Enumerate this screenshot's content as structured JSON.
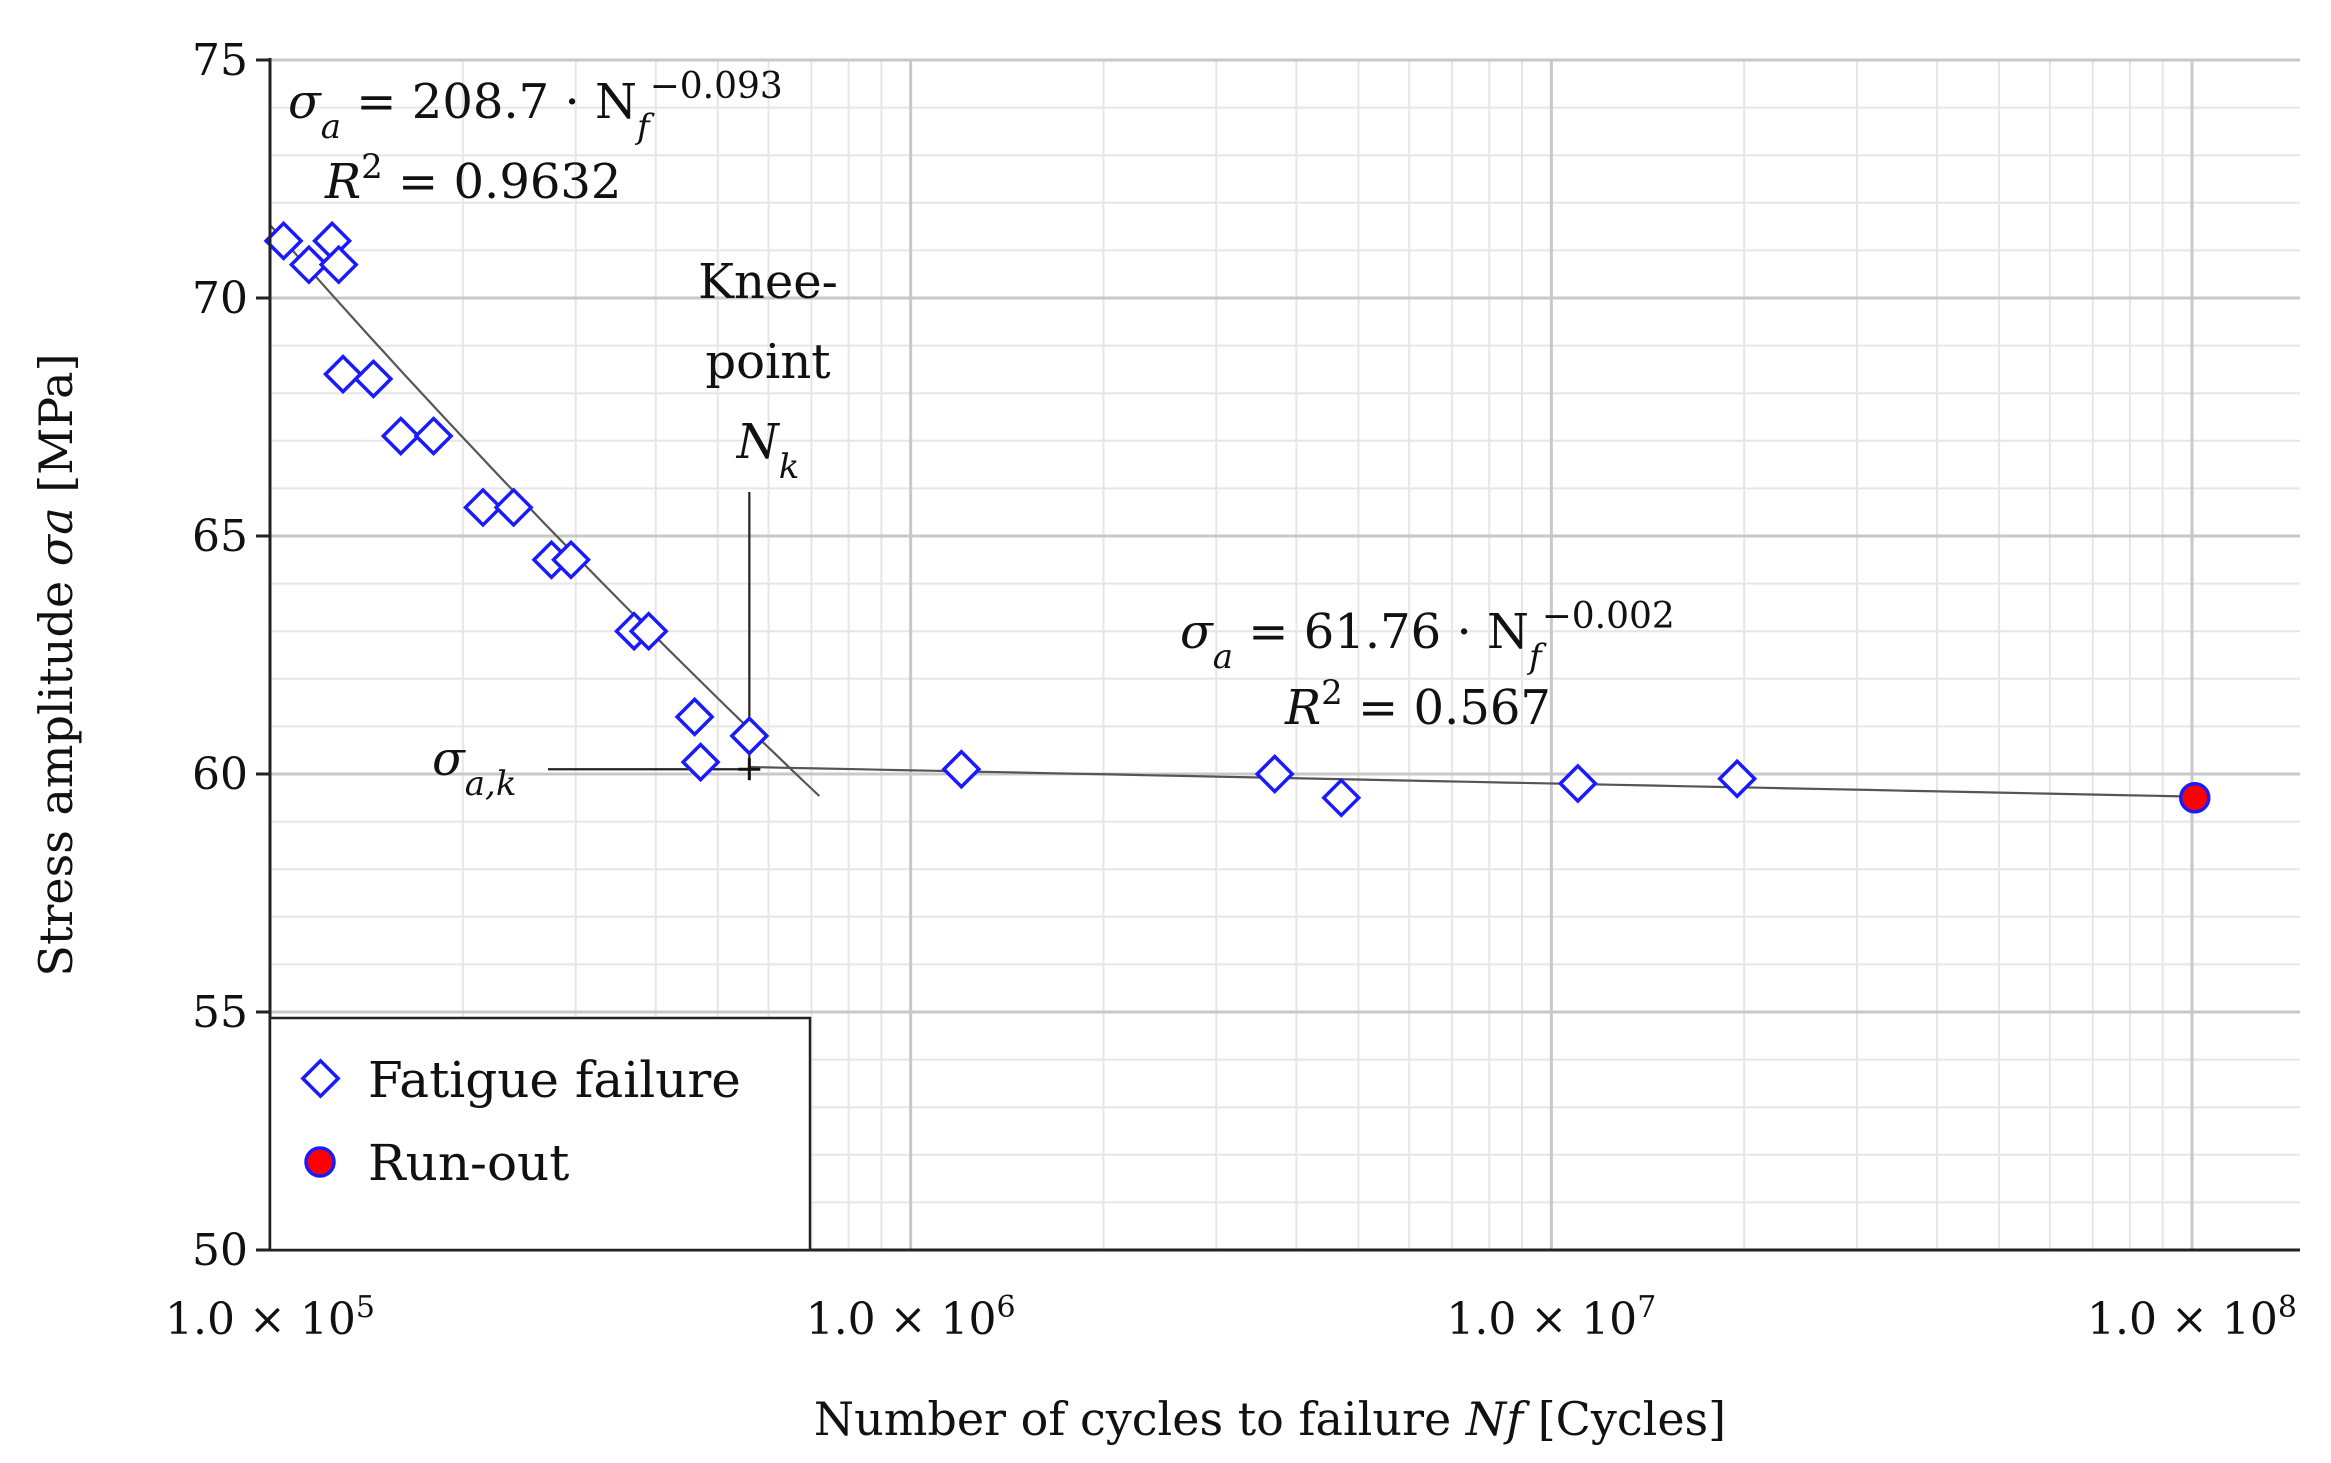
{
  "chart_data": {
    "type": "scatter",
    "xscale": "log",
    "xlim": [
      100000,
      150000000
    ],
    "ylim": [
      50,
      75
    ],
    "yticks": [
      50,
      55,
      60,
      65,
      70,
      75
    ],
    "ytick_labels": [
      "50",
      "55",
      "60",
      "65",
      "70",
      "75"
    ],
    "xticks": [
      100000,
      1000000,
      10000000,
      100000000
    ],
    "xtick_labels": [
      {
        "mantissa": "1.0 × 10",
        "exp": "5"
      },
      {
        "mantissa": "1.0 × 10",
        "exp": "6"
      },
      {
        "mantissa": "1.0 × 10",
        "exp": "7"
      },
      {
        "mantissa": "1.0 × 10",
        "exp": "8"
      }
    ],
    "grid": true,
    "xlabel": {
      "text": "Number of cycles to failure ",
      "symbol": "Nf",
      "unit": " [Cycles]"
    },
    "ylabel": {
      "text": "Stress amplitude ",
      "symbol": "σa",
      "unit": " [MPa]"
    },
    "legend": {
      "placement": "bottom-left",
      "entries": [
        {
          "label": "Fatigue failure",
          "marker": "diamond",
          "color": "#1a1aff"
        },
        {
          "label": "Run-out",
          "marker": "circle",
          "color": "#ff0000"
        }
      ]
    },
    "series": [
      {
        "name": "Fatigue failure",
        "points": [
          [
            105000,
            71.2
          ],
          [
            115000,
            70.7
          ],
          [
            125000,
            71.2
          ],
          [
            128000,
            70.7
          ],
          [
            130000,
            68.4
          ],
          [
            145000,
            68.3
          ],
          [
            160000,
            67.1
          ],
          [
            180000,
            67.1
          ],
          [
            215000,
            65.6
          ],
          [
            240000,
            65.6
          ],
          [
            275000,
            64.5
          ],
          [
            295000,
            64.5
          ],
          [
            370000,
            63.0
          ],
          [
            390000,
            63.0
          ],
          [
            460000,
            61.2
          ],
          [
            470000,
            60.25
          ],
          [
            560000,
            60.8
          ],
          [
            1200000,
            60.1
          ],
          [
            3700000,
            60.0
          ],
          [
            4700000,
            59.5
          ],
          [
            11000000,
            59.8
          ],
          [
            19500000,
            59.9
          ]
        ]
      },
      {
        "name": "Run-out",
        "points": [
          [
            101000000,
            59.5
          ]
        ]
      }
    ],
    "fits": [
      {
        "coef": 208.7,
        "exponent": -0.093,
        "x_range": [
          100000,
          720000
        ],
        "equation": {
          "lhs": "σ",
          "lhs_sub": "a",
          "rhs": " = 208.7 · N",
          "rhs_sub": "f",
          "exp": "−0.093"
        },
        "r2": {
          "lhs": "R",
          "sup": "2",
          "rhs": " = 0.9632"
        }
      },
      {
        "coef": 61.76,
        "exponent": -0.002,
        "x_range": [
          560000,
          100000000
        ],
        "equation": {
          "lhs": "σ",
          "lhs_sub": "a",
          "rhs": " = 61.76 · N",
          "rhs_sub": "f",
          "exp": "−0.002"
        },
        "r2": {
          "lhs": "R",
          "sup": "2",
          "rhs": " = 0.567"
        }
      }
    ],
    "knee_point": {
      "x": 560000,
      "y": 60.1,
      "label_lines": [
        "Knee-",
        "point"
      ],
      "nk": {
        "main": "N",
        "sub": "k"
      },
      "sigma_k": {
        "main": "σ",
        "sub": "a,k"
      }
    }
  }
}
